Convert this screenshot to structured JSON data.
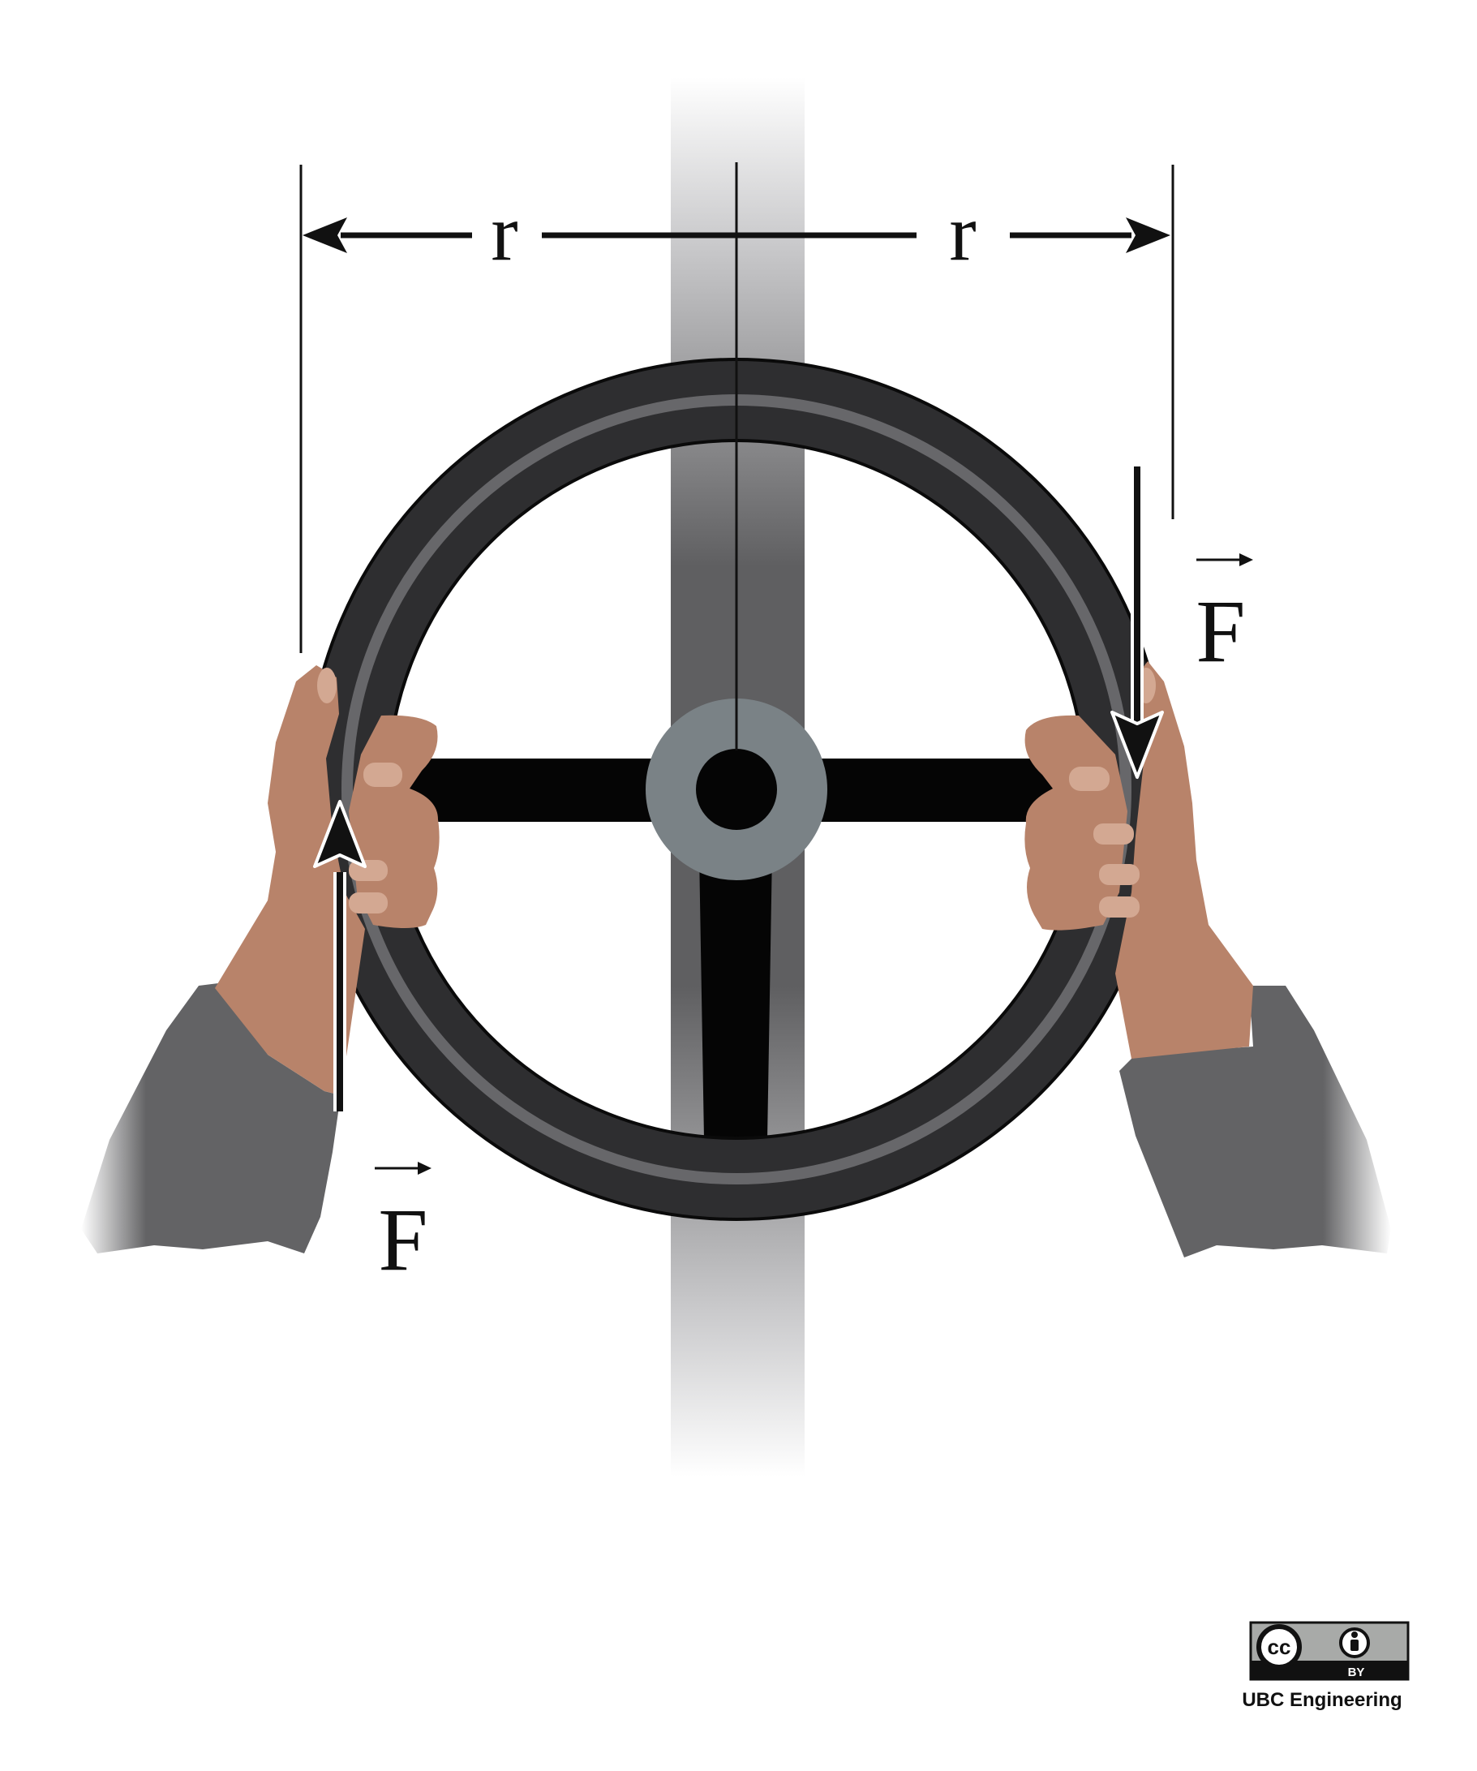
{
  "labels": {
    "radius_left": "r",
    "radius_right": "r",
    "force_right": "F",
    "force_left": "F"
  },
  "license": {
    "cc_mark": "cc",
    "by_mark": "BY",
    "credit": "UBC Engineering"
  },
  "colors": {
    "wheel_rim": "#3a3a3a",
    "column": "#5f5f61",
    "hub": "#7a8286",
    "spoke": "#050505",
    "skin": "#b8836a",
    "sleeve": "#636365"
  },
  "icons": [
    "force-arrow-up-icon",
    "force-arrow-down-icon",
    "dimension-arrow-icon",
    "cc-icon",
    "person-icon"
  ]
}
